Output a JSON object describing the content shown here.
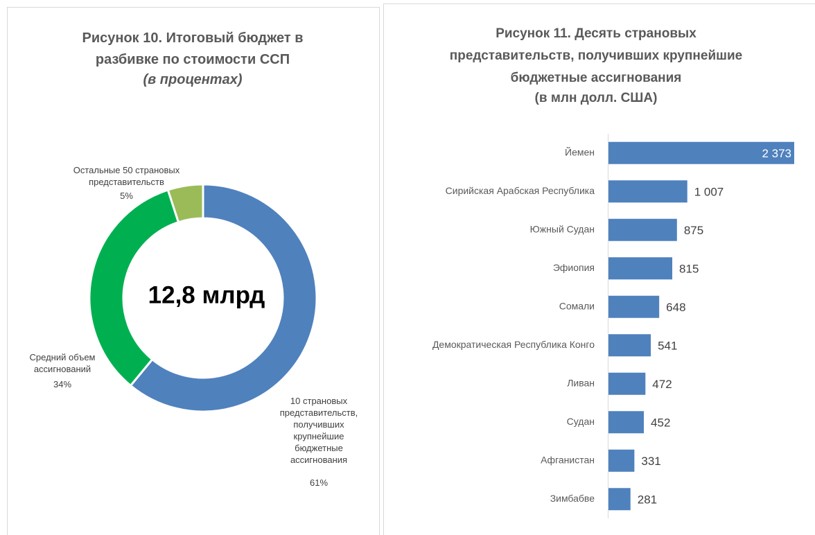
{
  "chart_data": [
    {
      "type": "donut",
      "title": "Рисунок 10. Итоговый бюджет в разбивке по стоимости ССП",
      "subtitle": "(в процентах)",
      "center_label": "12,8 млрд",
      "categories": [
        "10 страновых представительств, получивших крупнейшие бюджетные ассигнования",
        "Средний объем ассигнований",
        "Остальные 50 страновых представительств"
      ],
      "values": [
        61,
        34,
        5
      ],
      "value_labels": [
        "61%",
        "34%",
        "5%"
      ],
      "colors": [
        "#4f81bd",
        "#00b050",
        "#9bbb59"
      ]
    },
    {
      "type": "hbar",
      "title": "Рисунок 11. Десять страновых представительств, получивших крупнейшие бюджетные ассигнования",
      "subtitle": "(в млн долл. США)",
      "categories": [
        "Йемен",
        "Сирийская Арабская Республика",
        "Южный Судан",
        "Эфиопия",
        "Сомали",
        "Демократическая Республика Конго",
        "Ливан",
        "Судан",
        "Афганистан",
        "Зимбабве"
      ],
      "values": [
        2373,
        1007,
        875,
        815,
        648,
        541,
        472,
        452,
        331,
        281
      ],
      "value_labels": [
        "2 373",
        "1 007",
        "875",
        "815",
        "648",
        "541",
        "472",
        "452",
        "331",
        "281"
      ],
      "color": "#4f81bd"
    }
  ]
}
